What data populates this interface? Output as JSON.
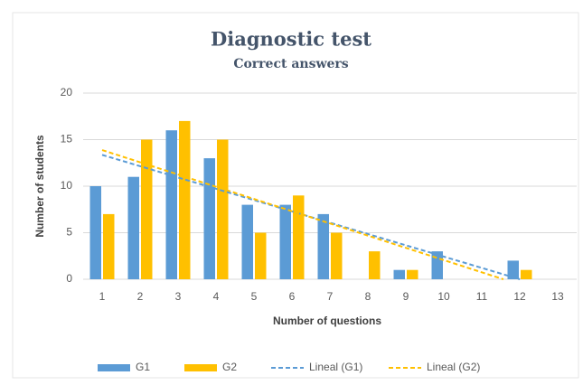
{
  "chart_data": {
    "type": "bar",
    "title": "Diagnostic test",
    "subtitle": "Correct answers",
    "x_label": "Number of questions",
    "y_label": "Number of students",
    "categories": [
      "1",
      "2",
      "3",
      "4",
      "5",
      "6",
      "7",
      "8",
      "9",
      "10",
      "11",
      "12",
      "13"
    ],
    "series": [
      {
        "name": "G1",
        "color": "#5b9bd5",
        "values": [
          10,
          11,
          16,
          13,
          8,
          8,
          7,
          0,
          1,
          3,
          0,
          2,
          0
        ]
      },
      {
        "name": "G2",
        "color": "#ffc000",
        "values": [
          7,
          15,
          17,
          15,
          5,
          9,
          5,
          3,
          1,
          0,
          0,
          1,
          0
        ]
      }
    ],
    "trendlines": [
      {
        "name": "Lineal (G1)",
        "series": 0,
        "color": "#5b9bd5"
      },
      {
        "name": "Lineal (G2)",
        "series": 1,
        "color": "#ffc000"
      }
    ],
    "ylim": [
      0,
      20
    ],
    "yticks": [
      0,
      5,
      10,
      15,
      20
    ],
    "grid": true,
    "legend": "bottom"
  }
}
